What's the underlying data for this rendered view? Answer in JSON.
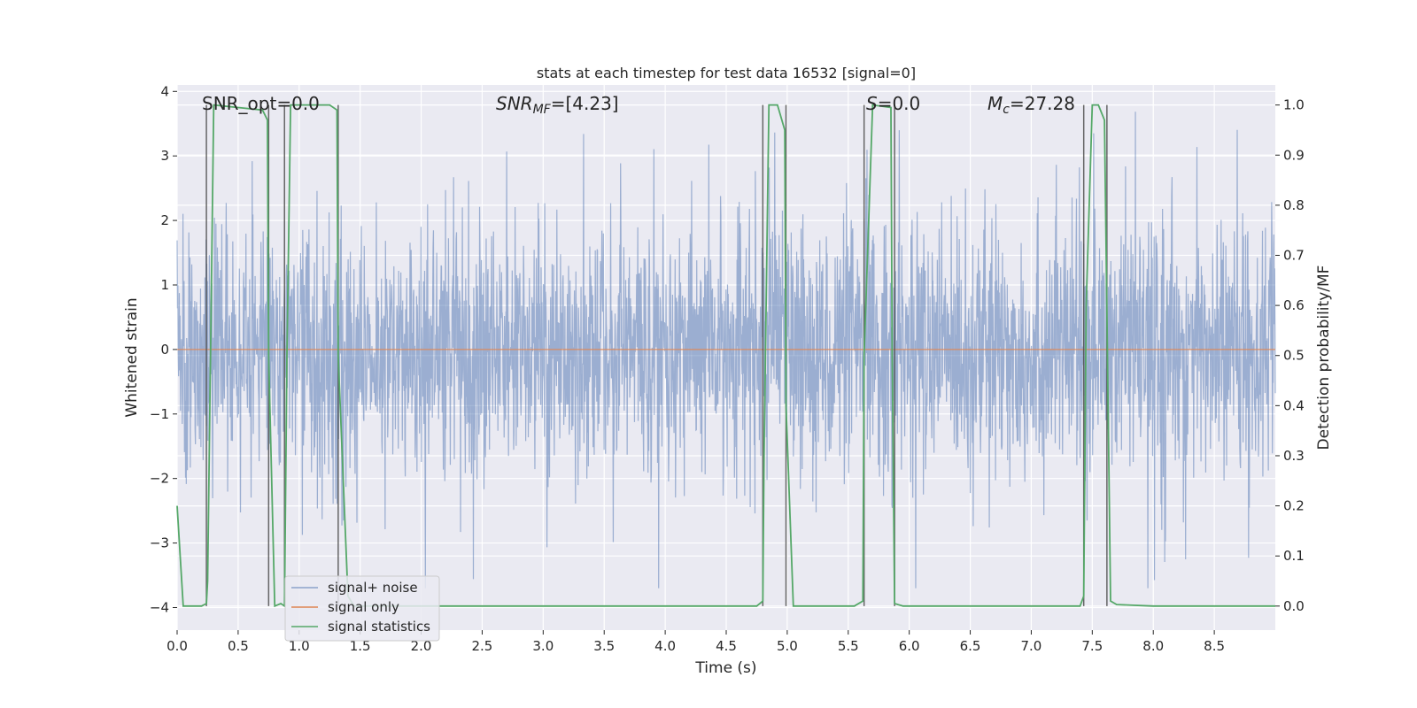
{
  "chart_data": {
    "type": "line",
    "title": "stats at each timestep for test data 16532 [signal=0]",
    "xlabel": "Time (s)",
    "ylabel": "Whitened strain",
    "y2label": "Detection probability/MF",
    "xlim": [
      0,
      9.0
    ],
    "ylim": [
      -4.35,
      4.1
    ],
    "y2lim": [
      -0.048,
      1.04
    ],
    "xticks": [
      0.0,
      0.5,
      1.0,
      1.5,
      2.0,
      2.5,
      3.0,
      3.5,
      4.0,
      4.5,
      5.0,
      5.5,
      6.0,
      6.5,
      7.0,
      7.5,
      8.0,
      8.5
    ],
    "xtick_labels": [
      "0.0",
      "0.5",
      "1.0",
      "1.5",
      "2.0",
      "2.5",
      "3.0",
      "3.5",
      "4.0",
      "4.5",
      "5.0",
      "5.5",
      "6.0",
      "6.5",
      "7.0",
      "7.5",
      "8.0",
      "8.5"
    ],
    "yticks": [
      -4,
      -3,
      -2,
      -1,
      0,
      1,
      2,
      3,
      4
    ],
    "ytick_labels": [
      "−4",
      "−3",
      "−2",
      "−1",
      "0",
      "1",
      "2",
      "3",
      "4"
    ],
    "y2ticks": [
      0.0,
      0.1,
      0.2,
      0.3,
      0.4,
      0.5,
      0.6,
      0.7,
      0.8,
      0.9,
      1.0
    ],
    "y2tick_labels": [
      "0.0",
      "0.1",
      "0.2",
      "0.3",
      "0.4",
      "0.5",
      "0.6",
      "0.7",
      "0.8",
      "0.9",
      "1.0"
    ],
    "annotations": {
      "snr_opt": "SNR_opt=0.0",
      "snr_mf_main": "SNR",
      "snr_mf_sub": "MF",
      "snr_mf_value": "=[4.23]",
      "s_main": "S",
      "s_value": "=0.0",
      "mc_main": "M",
      "mc_sub": "c",
      "mc_value": "=27.28"
    },
    "legend": {
      "placement": "lower-left",
      "entries": [
        "signal+ noise",
        "signal only",
        "signal statistics"
      ]
    },
    "series": [
      {
        "name": "signal+ noise",
        "axis": "left",
        "color": "#4c72b0",
        "typical_range": [
          -1.7,
          2.2
        ],
        "peak_range": [
          -3.7,
          3.9
        ],
        "description_values": "dense noise band"
      },
      {
        "name": "signal only",
        "axis": "left",
        "color": "#dd8452",
        "x": [
          0.0,
          9.0
        ],
        "y": [
          0.0,
          0.0
        ]
      },
      {
        "name": "signal statistics",
        "axis": "right",
        "color": "#55a868",
        "x": [
          0.0,
          0.05,
          0.2,
          0.24,
          0.25,
          0.3,
          0.5,
          0.7,
          0.74,
          0.75,
          0.8,
          0.85,
          0.88,
          0.9,
          0.93,
          1.0,
          1.25,
          1.31,
          1.32,
          1.4,
          1.45,
          4.75,
          4.8,
          4.81,
          4.85,
          4.92,
          4.98,
          4.99,
          5.05,
          5.55,
          5.62,
          5.63,
          5.7,
          5.85,
          5.86,
          5.88,
          5.95,
          7.0,
          7.4,
          7.43,
          7.45,
          7.5,
          7.55,
          7.6,
          7.65,
          7.7,
          8.0,
          9.0
        ],
        "y": [
          0.2,
          0.0,
          0.0,
          0.005,
          0.05,
          1.0,
          0.995,
          0.99,
          0.97,
          0.5,
          0.0,
          0.005,
          0.0,
          0.5,
          1.0,
          1.0,
          1.0,
          0.99,
          0.5,
          0.02,
          0.0,
          0.0,
          0.01,
          0.3,
          1.0,
          1.0,
          0.95,
          0.4,
          0.0,
          0.0,
          0.01,
          0.5,
          1.0,
          0.995,
          0.5,
          0.005,
          0.0,
          0.0,
          0.0,
          0.02,
          0.6,
          1.0,
          1.0,
          0.97,
          0.01,
          0.003,
          0.0,
          0.0
        ]
      }
    ],
    "vertical_markers": [
      0.24,
      0.75,
      0.88,
      1.32,
      4.8,
      4.99,
      5.63,
      5.88,
      7.43,
      7.62
    ]
  }
}
